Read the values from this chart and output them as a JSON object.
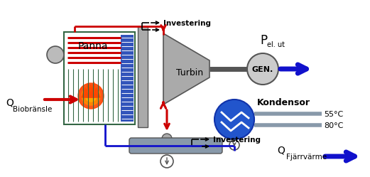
{
  "bg_color": "#ffffff",
  "labels": {
    "panna": "Panna",
    "turbin": "Turbin",
    "gen": "GEN.",
    "kondensor": "Kondensor",
    "pel_ut": "P",
    "pel_ut_sub": "el. ut",
    "q_bio": "Q",
    "q_bio_sub": "Biobränsle",
    "q_fjarr": "Q",
    "q_fjarr_sub": "Fjärrvärme",
    "investering1": "Investering",
    "investering2": "Investering",
    "temp55": "55°C",
    "temp80": "80°C"
  },
  "colors": {
    "red": "#cc0000",
    "blue": "#1111cc",
    "dark_gray": "#555555",
    "boiler_teal": "#336644",
    "pipe_gray": "#8899aa",
    "flame_orange": "#dd4400",
    "gen_fill": "#cccccc",
    "turbin_fill": "#aaaaaa",
    "kond_fill": "#2255cc",
    "chimney_fill": "#aaaaaa",
    "blue_panel": "#3355bb"
  }
}
